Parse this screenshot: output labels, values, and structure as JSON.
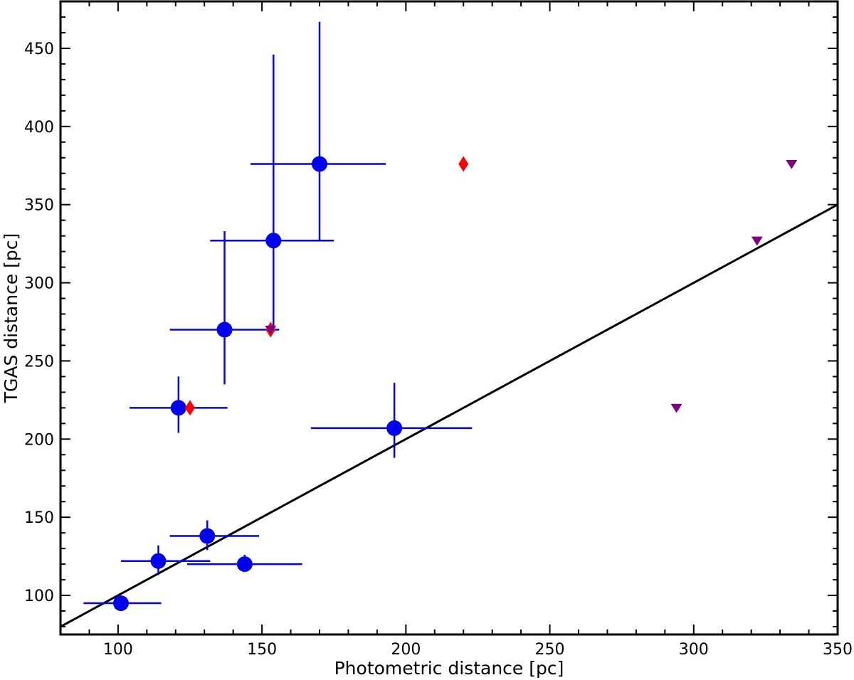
{
  "chart_data": {
    "type": "scatter",
    "title": "",
    "xlabel": "Photometric distance [pc]",
    "ylabel": "TGAS distance [pc]",
    "xlim": [
      80,
      350
    ],
    "ylim": [
      75,
      480
    ],
    "xticks": [
      100,
      150,
      200,
      250,
      300,
      350
    ],
    "yticks": [
      100,
      150,
      200,
      250,
      300,
      350,
      400,
      450
    ],
    "grid": false,
    "legend": "none",
    "colors": {
      "main": "#0000ee",
      "diamond": "#ff0000",
      "triangle": "#800080",
      "line": "#000000"
    },
    "series": [
      {
        "marker": "circle",
        "color": "#0000ee",
        "points": [
          {
            "x": 101,
            "y": 95,
            "xlo": 88,
            "xhi": 115,
            "ylo": 93,
            "yhi": 97
          },
          {
            "x": 114,
            "y": 122,
            "xlo": 101,
            "xhi": 132,
            "ylo": 113,
            "yhi": 132
          },
          {
            "x": 131,
            "y": 138,
            "xlo": 118,
            "xhi": 149,
            "ylo": 129,
            "yhi": 148
          },
          {
            "x": 144,
            "y": 120,
            "xlo": 124,
            "xhi": 164,
            "ylo": 115,
            "yhi": 126
          },
          {
            "x": 121,
            "y": 220,
            "xlo": 104,
            "xhi": 138,
            "ylo": 204,
            "yhi": 240
          },
          {
            "x": 137,
            "y": 270,
            "xlo": 118,
            "xhi": 156,
            "ylo": 235,
            "yhi": 333
          },
          {
            "x": 154,
            "y": 327,
            "xlo": 132,
            "xhi": 175,
            "ylo": 270,
            "yhi": 446
          },
          {
            "x": 170,
            "y": 376,
            "xlo": 146,
            "xhi": 193,
            "ylo": 327,
            "yhi": 467
          },
          {
            "x": 196,
            "y": 207,
            "xlo": 167,
            "xhi": 223,
            "ylo": 188,
            "yhi": 236
          }
        ]
      },
      {
        "marker": "diamond",
        "color": "#ff0000",
        "points": [
          {
            "x": 125,
            "y": 220
          },
          {
            "x": 153,
            "y": 270
          },
          {
            "x": 220,
            "y": 376
          }
        ]
      },
      {
        "marker": "triangle-down",
        "color": "#800080",
        "points": [
          {
            "x": 153,
            "y": 270
          },
          {
            "x": 294,
            "y": 220
          },
          {
            "x": 322,
            "y": 327
          },
          {
            "x": 334,
            "y": 376
          }
        ]
      }
    ],
    "reference_line": {
      "x": [
        80,
        350
      ],
      "y": [
        80,
        350
      ]
    }
  }
}
